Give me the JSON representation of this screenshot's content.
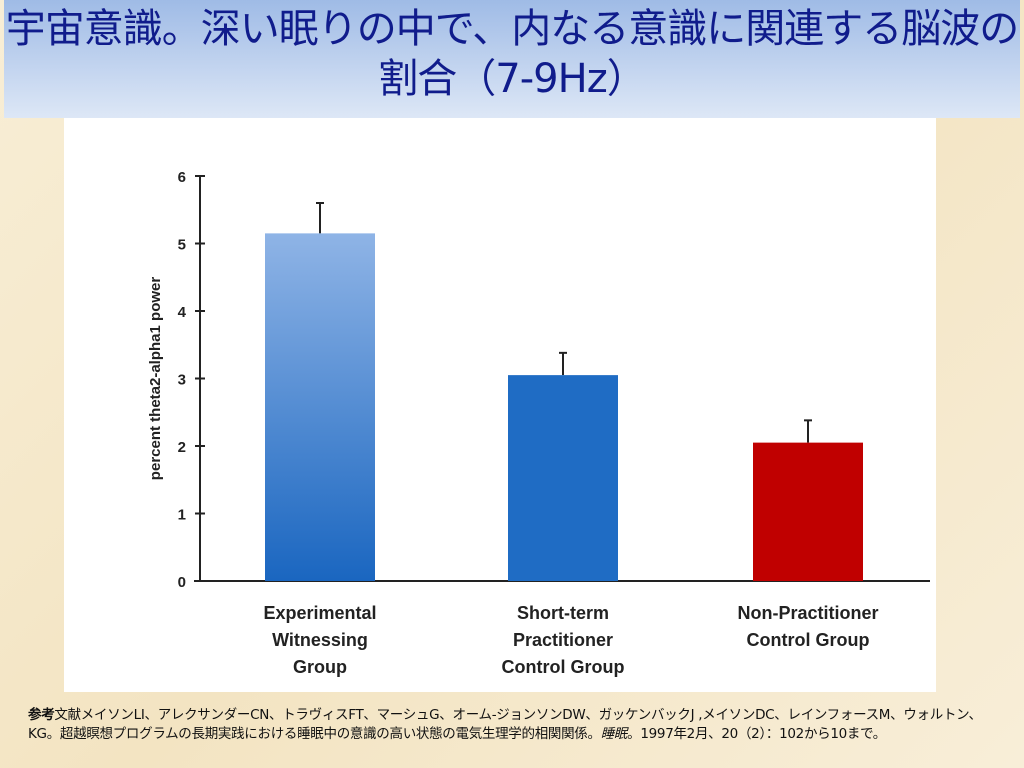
{
  "title": "宇宙意識。深い眠りの中で、内なる意識に関連する脳波の割合（7-9Hz）",
  "chart_data": {
    "type": "bar",
    "title": "",
    "xlabel": "",
    "ylabel": "percent theta2-alpha1 power",
    "ylim": [
      0,
      6
    ],
    "yticks": [
      0,
      1,
      2,
      3,
      4,
      5,
      6
    ],
    "grid": false,
    "categories": [
      [
        "Experimental",
        "Witnessing",
        "Group"
      ],
      [
        "Short-term",
        "Practitioner",
        "Control Group"
      ],
      [
        "Non-Practitioner",
        "Control Group"
      ]
    ],
    "values": [
      5.15,
      3.05,
      2.05
    ],
    "error_upper": [
      5.6,
      3.38,
      2.38
    ],
    "colors": [
      "#5b93d8",
      "#1f6cc4",
      "#c00000"
    ]
  },
  "reference": {
    "label": "参考",
    "text1": "文献メイソンLI、アレクサンダーCN、トラヴィスFT、マーシュG、オーム-ジョンソンDW、ガッケンバックJ ,メイソンDC、レインフォースM、ウォルトン、KG。超越瞑想プログラムの長期実践における睡眠中の意識の高い状態の電気生理学的相関関係。",
    "journal": "睡眠",
    "text2": "。1997年2月、20（2）：102から10まで。"
  }
}
